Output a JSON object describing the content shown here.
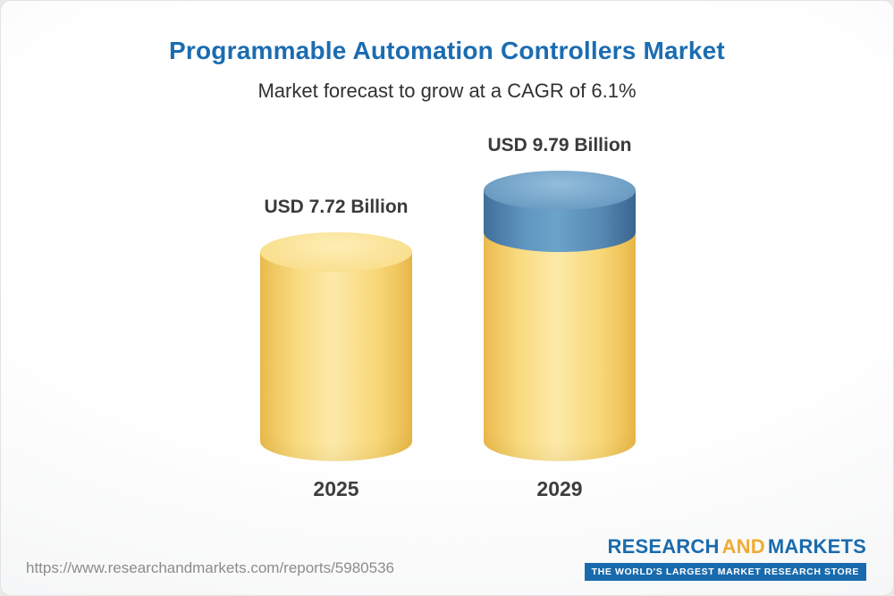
{
  "header": {
    "title": "Programmable Automation Controllers Market",
    "subtitle": "Market forecast to grow at a CAGR of 6.1%"
  },
  "chart_data": {
    "type": "bar",
    "variant": "3d-cylinder",
    "categories": [
      "2025",
      "2029"
    ],
    "values": [
      7.72,
      9.79
    ],
    "value_labels": [
      "USD 7.72 Billion",
      "USD 9.79 Billion"
    ],
    "unit": "USD Billion",
    "ylim": [
      0,
      9.79
    ],
    "series": [
      {
        "name": "base",
        "values": [
          7.72,
          7.72
        ],
        "color": "#F7D97E"
      },
      {
        "name": "growth",
        "values": [
          0,
          2.07
        ],
        "color": "#5E92BC"
      }
    ],
    "colors": {
      "bar_yellow": "#F7D97E",
      "growth_blue": "#5E92BC",
      "title_blue": "#1B6CB1"
    },
    "legend": "none",
    "grid": "off"
  },
  "footer": {
    "url": "https://www.researchandmarkets.com/reports/5980536",
    "logo": {
      "word1": "RESEARCH",
      "word2": "AND",
      "word3": "MARKETS",
      "tagline": "THE WORLD'S LARGEST MARKET RESEARCH STORE"
    }
  }
}
